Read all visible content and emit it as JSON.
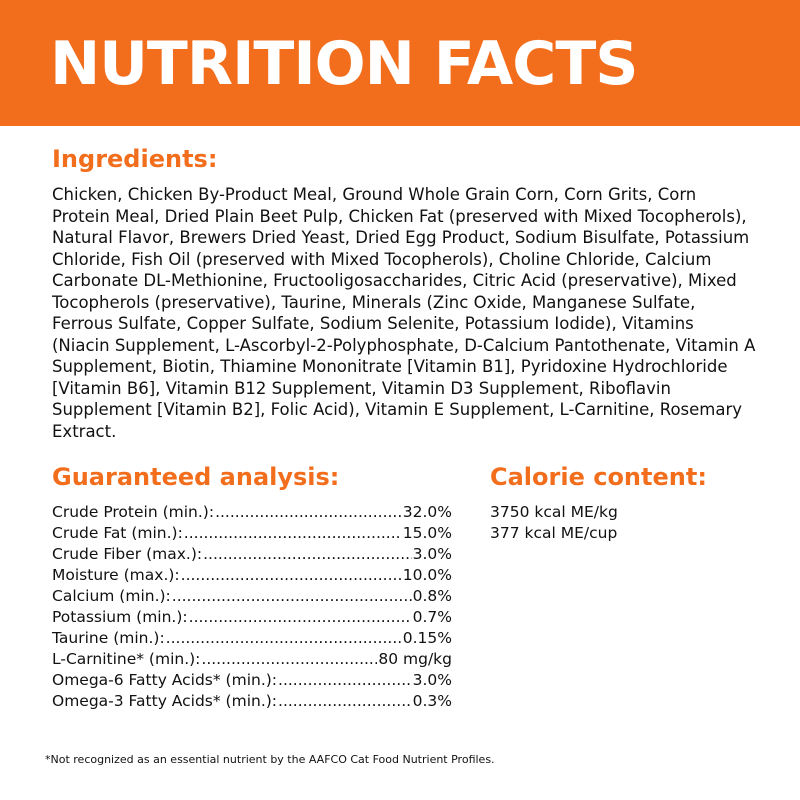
{
  "header": {
    "title": "NUTRITION FACTS"
  },
  "ingredients": {
    "heading": "Ingredients:",
    "text": "Chicken, Chicken By-Product Meal, Ground Whole Grain Corn, Corn Grits, Corn Protein Meal, Dried Plain Beet Pulp, Chicken Fat (preserved with Mixed Tocopherols), Natural Flavor, Brewers Dried Yeast, Dried Egg Product, Sodium Bisulfate, Potassium Chloride, Fish Oil (preserved with Mixed Tocopherols), Choline Chloride, Calcium Carbonate DL-Methionine, Fructooligosaccharides, Citric Acid (preservative), Mixed Tocopherols (preservative), Taurine, Minerals (Zinc Oxide, Manganese Sulfate, Ferrous Sulfate, Copper Sulfate, Sodium Selenite, Potassium Iodide), Vitamins (Niacin Supplement, L-Ascorbyl-2-Polyphosphate, D-Calcium Pantothenate, Vitamin A Supplement, Biotin, Thiamine Mononitrate [Vitamin B1], Pyridoxine Hydrochloride [Vitamin B6], Vitamin B12 Supplement, Vitamin D3 Supplement, Riboflavin Supplement [Vitamin B2], Folic Acid), Vitamin E Supplement, L-Carnitine, Rosemary Extract."
  },
  "analysis": {
    "heading": "Guaranteed analysis:",
    "rows": [
      {
        "label": "Crude Protein (min.):",
        "value": "32.0%"
      },
      {
        "label": "Crude Fat (min.):",
        "value": "15.0%"
      },
      {
        "label": "Crude Fiber (max.):",
        "value": "3.0%"
      },
      {
        "label": "Moisture (max.):",
        "value": "10.0%"
      },
      {
        "label": "Calcium (min.):",
        "value": "0.8%"
      },
      {
        "label": "Potassium (min.):",
        "value": "0.7%"
      },
      {
        "label": "Taurine (min.):",
        "value": "0.15%"
      },
      {
        "label": "L-Carnitine* (min.):",
        "value": "80 mg/kg"
      },
      {
        "label": "Omega-6 Fatty Acids* (min.):",
        "value": "3.0%"
      },
      {
        "label": "Omega-3 Fatty Acids* (min.):",
        "value": "0.3%"
      }
    ]
  },
  "calorie": {
    "heading": "Calorie content:",
    "lines": [
      "3750 kcal ME/kg",
      "377 kcal ME/cup"
    ]
  },
  "footnote": "*Not recognized as an essential nutrient by the AAFCO Cat Food Nutrient Profiles.",
  "colors": {
    "accent": "#f26e1d",
    "banner_text": "#ffffff",
    "body_text": "#111111"
  }
}
